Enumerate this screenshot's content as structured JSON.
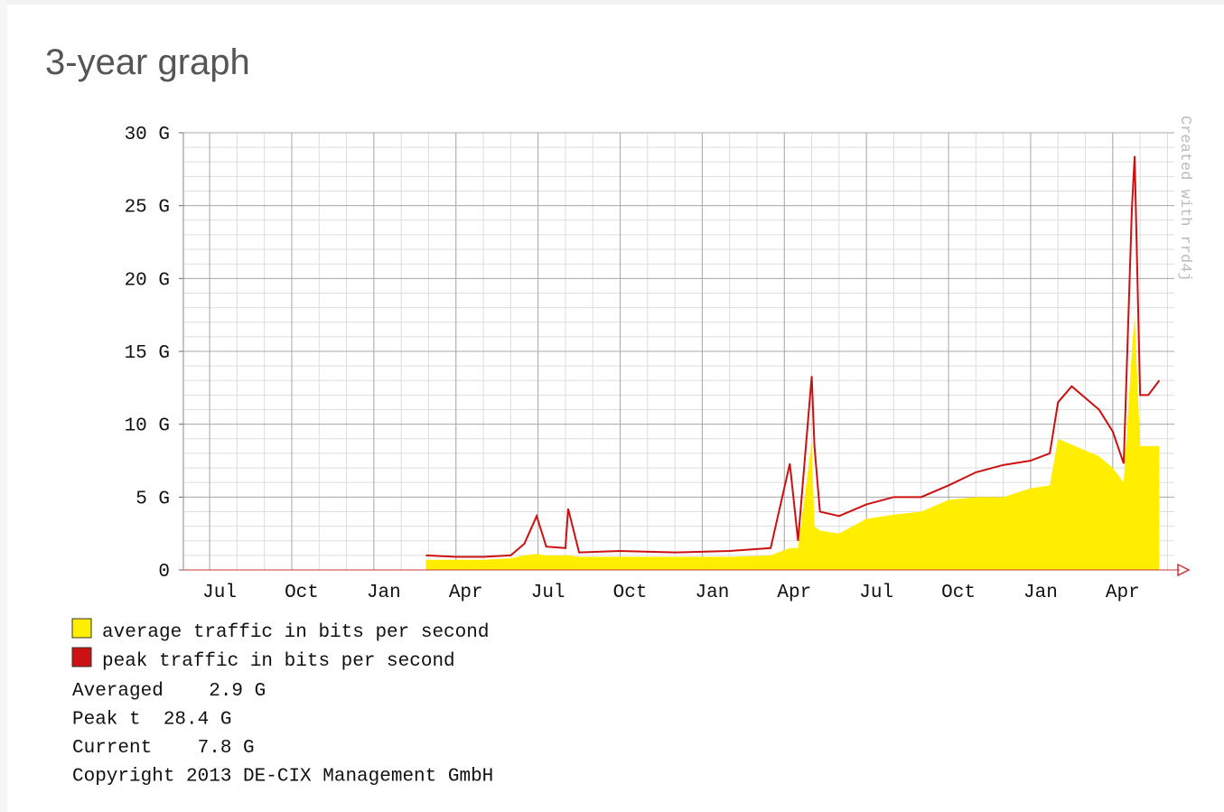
{
  "chart_data": {
    "type": "area-line",
    "title": "3-year graph",
    "watermark": "Created with rrd4j",
    "x": [
      7.9,
      9,
      10,
      11,
      11.5,
      11.95,
      12.3,
      13,
      13.1,
      13.5,
      15,
      17,
      19,
      20.5,
      21.2,
      21.5,
      22.0,
      22.1,
      22.3,
      23,
      24,
      25,
      26,
      27,
      28,
      29,
      30,
      30.7,
      31,
      31.5,
      32,
      32.5,
      33,
      33.4,
      33.7,
      33.8,
      34.0,
      34.3,
      34.7
    ],
    "series": [
      {
        "name": "average traffic in bits per second",
        "color": "#ffee00",
        "style": "area",
        "values": [
          0.7,
          0.7,
          0.7,
          0.8,
          1.0,
          1.1,
          1.0,
          1.0,
          1.0,
          0.9,
          0.9,
          0.9,
          0.9,
          1.0,
          1.5,
          1.5,
          8.8,
          3.0,
          2.7,
          2.5,
          3.5,
          3.8,
          4.0,
          4.8,
          5.0,
          5.0,
          5.6,
          5.8,
          9.0,
          8.6,
          8.2,
          7.8,
          7.0,
          6.0,
          15.0,
          17.5,
          8.5,
          8.5,
          8.5
        ]
      },
      {
        "name": "peak traffic in bits per second",
        "color": "#cc1111",
        "style": "line",
        "values": [
          1.0,
          0.9,
          0.9,
          1.0,
          1.8,
          3.7,
          1.6,
          1.5,
          4.2,
          1.2,
          1.3,
          1.2,
          1.3,
          1.5,
          7.3,
          2.0,
          13.3,
          8.5,
          4.0,
          3.7,
          4.5,
          5.0,
          5.0,
          5.8,
          6.7,
          7.2,
          7.5,
          8.0,
          11.5,
          12.6,
          11.8,
          11.0,
          9.5,
          7.3,
          24.8,
          28.4,
          12.0,
          12.0,
          13.0
        ]
      }
    ],
    "xlim": [
      -0.96,
      35.25
    ],
    "xticks": [
      {
        "value": 0,
        "label": "Jul"
      },
      {
        "value": 3,
        "label": "Oct"
      },
      {
        "value": 6,
        "label": "Jan"
      },
      {
        "value": 9,
        "label": "Apr"
      },
      {
        "value": 12,
        "label": "Jul"
      },
      {
        "value": 15,
        "label": "Oct"
      },
      {
        "value": 18,
        "label": "Jan"
      },
      {
        "value": 21,
        "label": "Apr"
      },
      {
        "value": 24,
        "label": "Jul"
      },
      {
        "value": 27,
        "label": "Oct"
      },
      {
        "value": 30,
        "label": "Jan"
      },
      {
        "value": 33,
        "label": "Apr"
      }
    ],
    "ylim": [
      0,
      30
    ],
    "yticks": [
      0,
      {
        "value": 5,
        "label": "5 G"
      },
      {
        "value": 10,
        "label": "10 G"
      },
      {
        "value": 15,
        "label": "15 G"
      },
      {
        "value": 20,
        "label": "20 G"
      },
      {
        "value": 25,
        "label": "25 G"
      },
      {
        "value": 30,
        "label": "30 G"
      }
    ],
    "grid": true,
    "footer": [
      "Averaged    2.9 G",
      "Peak t  28.4 G",
      "Current    7.8 G",
      "Copyright 2013 DE-CIX Management GmbH"
    ]
  }
}
